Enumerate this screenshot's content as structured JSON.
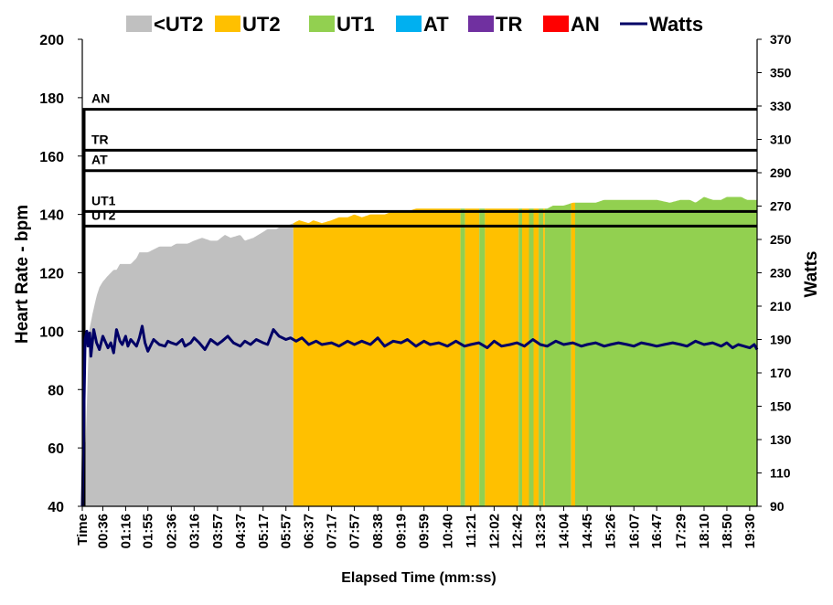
{
  "chart_data": {
    "type": "area",
    "title": "",
    "xlabel": "Elapsed Time (mm:ss)",
    "ylabel": "Heart Rate - bpm",
    "y2label": "Watts",
    "ylim": [
      40,
      200
    ],
    "y2lim": [
      90,
      370
    ],
    "yticks": [
      "40",
      "60",
      "80",
      "100",
      "120",
      "140",
      "160",
      "180",
      "200"
    ],
    "y2ticks": [
      "90",
      "110",
      "130",
      "150",
      "170",
      "190",
      "210",
      "230",
      "250",
      "270",
      "290",
      "310",
      "330",
      "350",
      "370"
    ],
    "xticks": [
      "Time",
      "00:36",
      "01:16",
      "01:55",
      "02:36",
      "03:16",
      "03:57",
      "04:37",
      "05:17",
      "05:57",
      "06:37",
      "07:17",
      "07:57",
      "08:38",
      "09:19",
      "09:59",
      "10:40",
      "11:21",
      "12:02",
      "12:42",
      "13:23",
      "14:04",
      "14:45",
      "15:26",
      "16:07",
      "16:47",
      "17:29",
      "18:10",
      "18:50",
      "19:30"
    ],
    "x_seconds": [
      0,
      36,
      76,
      115,
      156,
      196,
      237,
      277,
      317,
      357,
      397,
      437,
      477,
      518,
      559,
      599,
      640,
      681,
      722,
      762,
      803,
      844,
      885,
      926,
      967,
      1007,
      1049,
      1090,
      1130,
      1170
    ],
    "x_end_seconds": 1183,
    "legend": [
      {
        "name": "<UT2",
        "color": "#C0C0C0"
      },
      {
        "name": "UT2",
        "color": "#FFC000"
      },
      {
        "name": "UT1",
        "color": "#92D050"
      },
      {
        "name": "AT",
        "color": "#00B0F0"
      },
      {
        "name": "TR",
        "color": "#7030A0"
      },
      {
        "name": "AN",
        "color": "#FF0000"
      },
      {
        "name": "Watts",
        "color": "#000066"
      }
    ],
    "zone_thresholds": [
      {
        "label": "UT2",
        "bpm": 136
      },
      {
        "label": "UT1",
        "bpm": 141
      },
      {
        "label": "AT",
        "bpm": 155
      },
      {
        "label": "TR",
        "bpm": 162
      },
      {
        "label": "AN",
        "bpm": 176
      }
    ],
    "heart_rate": {
      "t": [
        0,
        4,
        6,
        12,
        15,
        18,
        25,
        30,
        36,
        45,
        55,
        60,
        66,
        76,
        85,
        95,
        100,
        115,
        125,
        135,
        145,
        156,
        165,
        175,
        185,
        196,
        210,
        225,
        237,
        250,
        260,
        277,
        285,
        300,
        317,
        325,
        330,
        340,
        350,
        357,
        370,
        380,
        397,
        405,
        420,
        437,
        450,
        465,
        477,
        490,
        505,
        518,
        530,
        545,
        559,
        570,
        585,
        599,
        610,
        625,
        640,
        655,
        670,
        681,
        695,
        710,
        722,
        740,
        750,
        762,
        770,
        785,
        803,
        815,
        825,
        835,
        844,
        860,
        870,
        885,
        900,
        915,
        926,
        945,
        967,
        990,
        1007,
        1030,
        1049,
        1065,
        1075,
        1090,
        1105,
        1120,
        1130,
        1145,
        1155,
        1165,
        1175,
        1183
      ],
      "bpm": [
        40,
        62,
        62,
        100,
        103,
        106,
        112,
        115,
        117,
        119,
        121,
        121,
        123,
        123,
        123,
        125,
        127,
        127,
        128,
        129,
        129,
        129,
        130,
        130,
        130,
        131,
        132,
        131,
        131,
        133,
        132,
        133,
        131,
        132,
        134,
        135,
        135,
        135,
        136,
        136,
        137,
        138,
        137,
        138,
        137,
        138,
        139,
        139,
        140,
        139,
        140,
        140,
        140,
        141,
        141,
        141,
        142,
        142,
        142,
        142,
        142,
        142,
        142,
        142,
        142,
        142,
        142,
        142,
        142,
        142,
        142,
        142,
        142,
        142,
        143,
        143,
        143,
        144,
        144,
        144,
        144,
        145,
        145,
        145,
        145,
        145,
        145,
        144,
        145,
        145,
        144,
        146,
        145,
        145,
        146,
        146,
        146,
        145,
        145,
        145
      ]
    },
    "zone_segments": [
      {
        "zone": "<UT2",
        "from": 0,
        "to": 370
      },
      {
        "zone": "UT2",
        "from": 370,
        "to": 663
      },
      {
        "zone": "UT1",
        "from": 663,
        "to": 671
      },
      {
        "zone": "UT2",
        "from": 671,
        "to": 696
      },
      {
        "zone": "UT1",
        "from": 696,
        "to": 706
      },
      {
        "zone": "UT2",
        "from": 706,
        "to": 765
      },
      {
        "zone": "UT1",
        "from": 765,
        "to": 771
      },
      {
        "zone": "UT2",
        "from": 771,
        "to": 783
      },
      {
        "zone": "UT1",
        "from": 783,
        "to": 791
      },
      {
        "zone": "UT2",
        "from": 791,
        "to": 800
      },
      {
        "zone": "UT1",
        "from": 800,
        "to": 808
      },
      {
        "zone": "UT2",
        "from": 808,
        "to": 811
      },
      {
        "zone": "UT1",
        "from": 811,
        "to": 857
      },
      {
        "zone": "UT2",
        "from": 857,
        "to": 864
      },
      {
        "zone": "UT1",
        "from": 864,
        "to": 1183
      }
    ],
    "watts": {
      "t": [
        0,
        3,
        5,
        8,
        10,
        13,
        15,
        20,
        25,
        30,
        36,
        45,
        50,
        55,
        60,
        66,
        70,
        76,
        80,
        85,
        95,
        100,
        105,
        110,
        115,
        125,
        135,
        145,
        150,
        156,
        165,
        175,
        180,
        190,
        196,
        205,
        215,
        225,
        237,
        245,
        255,
        265,
        277,
        285,
        295,
        305,
        317,
        325,
        335,
        345,
        357,
        365,
        375,
        385,
        397,
        410,
        420,
        437,
        450,
        465,
        477,
        490,
        505,
        518,
        530,
        545,
        559,
        570,
        585,
        599,
        610,
        625,
        640,
        655,
        670,
        681,
        695,
        710,
        722,
        735,
        750,
        762,
        775,
        790,
        803,
        815,
        830,
        844,
        860,
        875,
        885,
        900,
        915,
        926,
        940,
        955,
        967,
        980,
        995,
        1007,
        1020,
        1035,
        1049,
        1060,
        1075,
        1090,
        1105,
        1120,
        1130,
        1140,
        1150,
        1160,
        1170,
        1178,
        1183
      ],
      "w": [
        90,
        150,
        190,
        195,
        186,
        194,
        180,
        196,
        188,
        184,
        192,
        185,
        188,
        182,
        196,
        189,
        187,
        192,
        186,
        190,
        186,
        191,
        198,
        188,
        183,
        190,
        187,
        186,
        189,
        188,
        187,
        190,
        186,
        188,
        191,
        188,
        184,
        190,
        187,
        189,
        192,
        188,
        186,
        189,
        187,
        190,
        188,
        187,
        196,
        192,
        190,
        191,
        189,
        191,
        187,
        189,
        187,
        188,
        186,
        189,
        187,
        189,
        187,
        191,
        186,
        189,
        188,
        190,
        186,
        189,
        187,
        188,
        186,
        189,
        186,
        187,
        188,
        185,
        189,
        186,
        187,
        188,
        186,
        190,
        187,
        186,
        189,
        187,
        188,
        186,
        187,
        188,
        186,
        187,
        188,
        187,
        186,
        188,
        187,
        186,
        187,
        188,
        187,
        186,
        189,
        187,
        188,
        186,
        188,
        185,
        187,
        186,
        185,
        187,
        184
      ]
    }
  }
}
